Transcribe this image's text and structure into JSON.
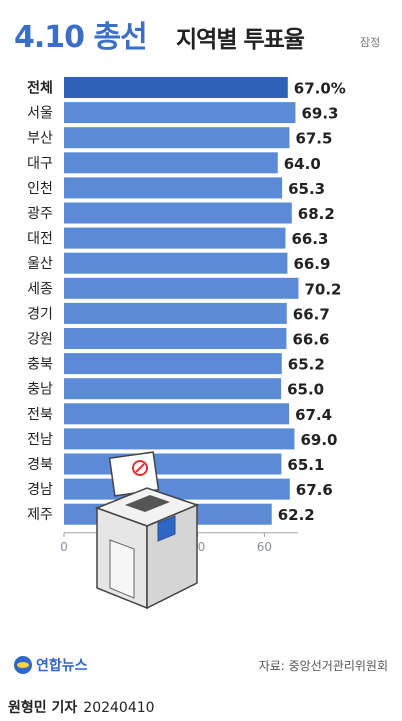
{
  "header": {
    "title_main": "4.10 총선",
    "title_sub": "지역별 투표율",
    "note": "잠정"
  },
  "footer": {
    "logo_text": "연합뉴스",
    "source": "자료: 중앙선거관리위원회",
    "reporter": "원형민 기자",
    "date": "20240410"
  },
  "chart_data": {
    "type": "bar",
    "orientation": "horizontal",
    "categories": [
      "전체",
      "서울",
      "부산",
      "대구",
      "인천",
      "광주",
      "대전",
      "울산",
      "세종",
      "경기",
      "강원",
      "충북",
      "충남",
      "전북",
      "전남",
      "경북",
      "경남",
      "제주"
    ],
    "values": [
      67.0,
      69.3,
      67.5,
      64.0,
      65.3,
      68.2,
      66.3,
      66.9,
      70.2,
      66.7,
      66.6,
      65.2,
      65.0,
      67.4,
      69.0,
      65.1,
      67.6,
      62.2
    ],
    "value_labels": [
      "67.0%",
      "69.3",
      "67.5",
      "64.0",
      "65.3",
      "68.2",
      "66.3",
      "66.9",
      "70.2",
      "66.7",
      "66.6",
      "65.2",
      "65.0",
      "67.4",
      "69.0",
      "65.1",
      "67.6",
      "62.2"
    ],
    "highlight_index": 0,
    "xlim": [
      0,
      80
    ],
    "xticks": [
      0,
      20,
      40,
      60
    ],
    "grid": false,
    "colors": {
      "bar": "#5b8ad6",
      "highlight": "#2d62b8",
      "axis": "#9aa3ad"
    }
  }
}
